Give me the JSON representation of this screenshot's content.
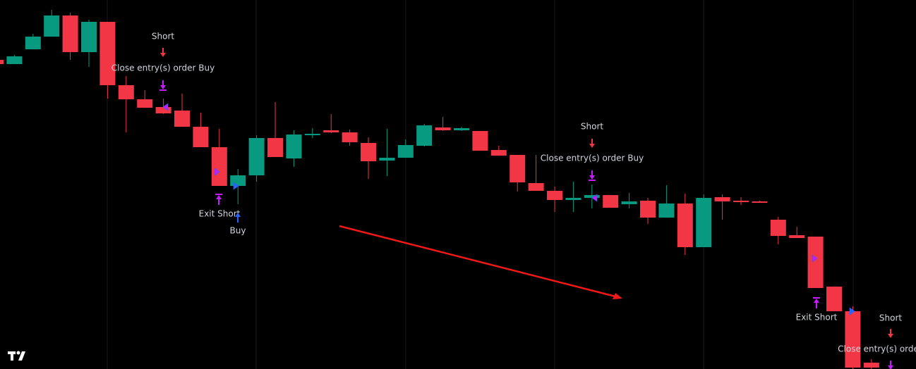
{
  "chart_data": {
    "type": "candlestick",
    "up_color": "#089981",
    "down_color": "#f23645",
    "ylim": [
      0,
      524
    ],
    "open": [
      439,
      433,
      454,
      472,
      502,
      450,
      493,
      403,
      383,
      372,
      367,
      344,
      315,
      260,
      275,
      328,
      299,
      332,
      339,
      336,
      321,
      296,
      300,
      317,
      343,
      339,
      338,
      311,
      304,
      264,
      253,
      240,
      243,
      247,
      234,
      239,
      215,
      235,
      173,
      244,
      239,
      238,
      212,
      190,
      188,
      117,
      82,
      9
    ],
    "high": [
      439,
      446,
      476,
      510,
      506,
      496,
      493,
      416,
      396,
      384,
      391,
      364,
      341,
      284,
      332,
      379,
      339,
      342,
      362,
      340,
      329,
      341,
      326,
      348,
      358,
      344,
      338,
      317,
      304,
      304,
      259,
      266,
      262,
      247,
      250,
      243,
      261,
      249,
      248,
      248,
      244,
      239,
      216,
      202,
      188,
      117,
      89,
      14
    ],
    "low": [
      433,
      433,
      454,
      472,
      439,
      429,
      384,
      336,
      371,
      362,
      344,
      315,
      260,
      234,
      266,
      301,
      287,
      328,
      335,
      317,
      270,
      274,
      300,
      316,
      338,
      338,
      310,
      303,
      252,
      253,
      223,
      223,
      228,
      229,
      228,
      206,
      215,
      162,
      173,
      212,
      233,
      236,
      177,
      186,
      115,
      82,
      0,
      0
    ],
    "close": [
      433,
      444,
      472,
      502,
      450,
      493,
      403,
      383,
      371,
      363,
      344,
      315,
      260,
      275,
      328,
      301,
      333,
      334,
      336,
      322,
      295,
      300,
      318,
      346,
      339,
      342,
      310,
      303,
      265,
      253,
      240,
      243,
      247,
      229,
      238,
      215,
      235,
      173,
      243,
      238,
      237,
      236,
      189,
      186,
      115,
      82,
      2,
      2
    ],
    "annotations": [
      "Short",
      "Close entry(s) order Buy",
      "Exit Short",
      "Buy",
      "Short",
      "Close entry(s) order Buy",
      "Exit Short",
      "Short",
      "Close entry(s) order"
    ]
  }
}
